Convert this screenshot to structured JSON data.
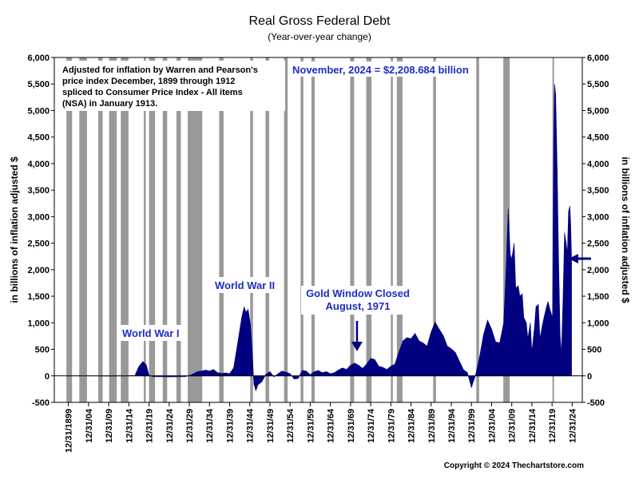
{
  "chart_data": {
    "type": "area",
    "title": "Real Gross Federal Debt",
    "subtitle": "(Year-over-year change)",
    "ylabel_left": "in billions of inflation adjusted $",
    "ylabel_right": "in billions of inflation adjusted $",
    "ylim": [
      -500,
      6000
    ],
    "yticks": [
      -500,
      0,
      500,
      1000,
      1500,
      2000,
      2500,
      3000,
      3500,
      4000,
      4500,
      5000,
      5500,
      6000
    ],
    "ytick_labels": [
      "-500",
      "0",
      "500",
      "1,000",
      "1,500",
      "2,000",
      "2,500",
      "3,000",
      "3,500",
      "4,000",
      "4,500",
      "5,000",
      "5,500",
      "6,000"
    ],
    "xlim": [
      1896.5,
      2027.5
    ],
    "xticks": [
      1899.997,
      1904.997,
      1909.997,
      1914.997,
      1919.997,
      1924.997,
      1929.997,
      1934.997,
      1939.997,
      1944.997,
      1949.997,
      1954.997,
      1959.997,
      1964.997,
      1969.997,
      1974.997,
      1979.997,
      1984.997,
      1989.997,
      1994.997,
      1999.997,
      2004.997,
      2009.997,
      2014.997,
      2019.997,
      2024.997
    ],
    "xtick_labels": [
      "12/31/1899",
      "12/31/04",
      "12/31/09",
      "12/31/14",
      "12/31/19",
      "12/31/24",
      "12/31/29",
      "12/31/34",
      "12/31/39",
      "12/31/44",
      "12/31/49",
      "12/31/54",
      "12/31/59",
      "12/31/64",
      "12/31/69",
      "12/31/74",
      "12/31/79",
      "12/31/84",
      "12/31/89",
      "12/31/94",
      "12/31/99",
      "12/31/04",
      "12/31/09",
      "12/31/14",
      "12/31/19",
      "12/31/24"
    ],
    "recessions": [
      [
        1899.5,
        1900.9
      ],
      [
        1902.7,
        1904.6
      ],
      [
        1907.4,
        1908.5
      ],
      [
        1910.1,
        1912.0
      ],
      [
        1913.0,
        1914.9
      ],
      [
        1918.7,
        1919.2
      ],
      [
        1920.0,
        1921.5
      ],
      [
        1923.4,
        1924.5
      ],
      [
        1926.8,
        1927.9
      ],
      [
        1929.6,
        1933.2
      ],
      [
        1937.4,
        1938.5
      ],
      [
        1945.1,
        1945.8
      ],
      [
        1948.9,
        1949.8
      ],
      [
        1953.5,
        1954.4
      ],
      [
        1957.6,
        1958.3
      ],
      [
        1960.3,
        1961.1
      ],
      [
        1969.9,
        1970.9
      ],
      [
        1973.9,
        1975.2
      ],
      [
        1980.0,
        1980.5
      ],
      [
        1981.5,
        1982.9
      ],
      [
        1990.5,
        1991.2
      ],
      [
        2001.2,
        2001.9
      ],
      [
        2007.9,
        2009.5
      ],
      [
        2020.1,
        2020.4
      ]
    ],
    "series": [
      {
        "color": "#000080",
        "points": [
          [
            1899.5,
            0
          ],
          [
            1905,
            0
          ],
          [
            1910,
            -5
          ],
          [
            1914,
            0
          ],
          [
            1916.5,
            5
          ],
          [
            1917.5,
            180
          ],
          [
            1918.5,
            270
          ],
          [
            1919.3,
            210
          ],
          [
            1920,
            10
          ],
          [
            1921,
            -15
          ],
          [
            1925,
            -20
          ],
          [
            1929,
            -15
          ],
          [
            1930,
            5
          ],
          [
            1931,
            40
          ],
          [
            1932,
            80
          ],
          [
            1933,
            90
          ],
          [
            1934,
            110
          ],
          [
            1935,
            90
          ],
          [
            1936,
            120
          ],
          [
            1937,
            60
          ],
          [
            1938,
            45
          ],
          [
            1939,
            55
          ],
          [
            1940,
            40
          ],
          [
            1941,
            150
          ],
          [
            1942,
            620
          ],
          [
            1943,
            1100
          ],
          [
            1943.6,
            1300
          ],
          [
            1944,
            1200
          ],
          [
            1944.6,
            1250
          ],
          [
            1945.2,
            950
          ],
          [
            1945.6,
            500
          ],
          [
            1946,
            -150
          ],
          [
            1946.5,
            -280
          ],
          [
            1947,
            -170
          ],
          [
            1948,
            -110
          ],
          [
            1949,
            30
          ],
          [
            1950,
            80
          ],
          [
            1951,
            -20
          ],
          [
            1952,
            40
          ],
          [
            1953,
            90
          ],
          [
            1954,
            70
          ],
          [
            1955,
            40
          ],
          [
            1956,
            -60
          ],
          [
            1957,
            -50
          ],
          [
            1958,
            100
          ],
          [
            1959,
            90
          ],
          [
            1960,
            20
          ],
          [
            1961,
            80
          ],
          [
            1962,
            100
          ],
          [
            1963,
            60
          ],
          [
            1964,
            80
          ],
          [
            1965,
            40
          ],
          [
            1966,
            60
          ],
          [
            1967,
            110
          ],
          [
            1968,
            150
          ],
          [
            1969,
            120
          ],
          [
            1970,
            200
          ],
          [
            1971,
            240
          ],
          [
            1972,
            200
          ],
          [
            1973,
            140
          ],
          [
            1974,
            220
          ],
          [
            1975,
            330
          ],
          [
            1976,
            310
          ],
          [
            1977,
            180
          ],
          [
            1978,
            160
          ],
          [
            1979,
            120
          ],
          [
            1980,
            180
          ],
          [
            1981,
            220
          ],
          [
            1982,
            450
          ],
          [
            1983,
            660
          ],
          [
            1984,
            720
          ],
          [
            1985,
            700
          ],
          [
            1986,
            800
          ],
          [
            1987,
            660
          ],
          [
            1988,
            620
          ],
          [
            1989,
            560
          ],
          [
            1990,
            830
          ],
          [
            1991,
            1010
          ],
          [
            1992,
            880
          ],
          [
            1993,
            760
          ],
          [
            1994,
            560
          ],
          [
            1995,
            510
          ],
          [
            1996,
            440
          ],
          [
            1997,
            280
          ],
          [
            1998,
            120
          ],
          [
            1999,
            60
          ],
          [
            2000,
            -220
          ],
          [
            2001,
            10
          ],
          [
            2002,
            350
          ],
          [
            2003,
            780
          ],
          [
            2004,
            1050
          ],
          [
            2005,
            880
          ],
          [
            2006,
            640
          ],
          [
            2007,
            620
          ],
          [
            2008,
            1000
          ],
          [
            2008.6,
            2000
          ],
          [
            2009.1,
            3150
          ],
          [
            2009.6,
            2300
          ],
          [
            2010,
            2200
          ],
          [
            2010.6,
            2500
          ],
          [
            2011,
            1650
          ],
          [
            2011.6,
            1700
          ],
          [
            2012,
            1500
          ],
          [
            2012.6,
            1550
          ],
          [
            2013,
            1100
          ],
          [
            2013.6,
            1000
          ],
          [
            2014,
            700
          ],
          [
            2014.6,
            1000
          ],
          [
            2015,
            450
          ],
          [
            2015.6,
            900
          ],
          [
            2016,
            1300
          ],
          [
            2016.6,
            1350
          ],
          [
            2017,
            700
          ],
          [
            2017.6,
            950
          ],
          [
            2018,
            1100
          ],
          [
            2018.6,
            1300
          ],
          [
            2019,
            1400
          ],
          [
            2019.5,
            1250
          ],
          [
            2020.1,
            1100
          ],
          [
            2020.4,
            4400
          ],
          [
            2020.6,
            5500
          ],
          [
            2020.9,
            5300
          ],
          [
            2021.3,
            3800
          ],
          [
            2021.6,
            2300
          ],
          [
            2022,
            800
          ],
          [
            2022.3,
            400
          ],
          [
            2022.7,
            1400
          ],
          [
            2023.1,
            2700
          ],
          [
            2023.5,
            2500
          ],
          [
            2023.8,
            2300
          ],
          [
            2024.1,
            3100
          ],
          [
            2024.4,
            3200
          ],
          [
            2024.6,
            2900
          ],
          [
            2024.85,
            2208.684
          ],
          [
            2024.85,
            0
          ]
        ]
      }
    ],
    "annotations": [
      {
        "id": "note",
        "lines": [
          "Adjusted for inflation by Warren and Pearson's",
          "price index December, 1899 through 1912",
          "spliced to Consumer Price Index - All items",
          "(NSA) in January 1913."
        ]
      },
      {
        "id": "latest",
        "lines": [
          "November, 2024 = $2,208.684 billion"
        ]
      },
      {
        "id": "ww1",
        "lines": [
          "World War I"
        ]
      },
      {
        "id": "ww2",
        "lines": [
          "World War II"
        ]
      },
      {
        "id": "gold",
        "lines": [
          "Gold Window Closed",
          "August, 1971"
        ]
      }
    ],
    "copyright": "Copyright © 2024 Thechartstore.com"
  }
}
